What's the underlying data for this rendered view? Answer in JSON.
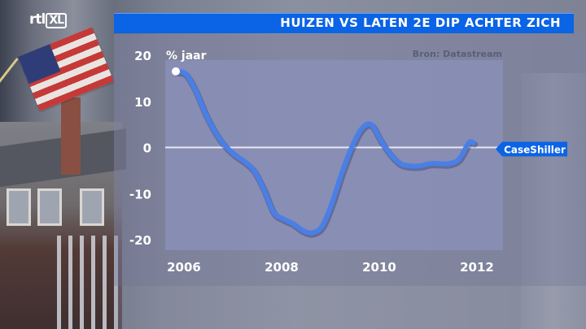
{
  "logo": {
    "rtl": "rtl",
    "xl": "XL"
  },
  "title": "HUIZEN VS LATEN 2E DIP ACHTER ZICH",
  "chart_data": {
    "type": "line",
    "title": "HUIZEN VS LATEN 2E DIP ACHTER ZICH",
    "ylabel": "% jaar",
    "source": "Bron: Datastream",
    "series_label": "CaseShiller",
    "ylim": [
      -20,
      20
    ],
    "xlim": [
      2006.0,
      2012.4
    ],
    "yticks": [
      20,
      10,
      0,
      -10,
      -20
    ],
    "ytick_labels": [
      "20",
      "10",
      "0",
      "-10",
      "-20"
    ],
    "xticks": [
      2006,
      2008,
      2010,
      2012
    ],
    "xtick_labels": [
      "2006",
      "2008",
      "2010",
      "2012"
    ],
    "reference_line": 0,
    "series": [
      {
        "name": "CaseShiller",
        "x": [
          2006.0,
          2006.2,
          2006.4,
          2006.6,
          2006.8,
          2007.0,
          2007.2,
          2007.4,
          2007.6,
          2007.8,
          2008.0,
          2008.2,
          2008.4,
          2008.6,
          2008.8,
          2009.0,
          2009.2,
          2009.4,
          2009.6,
          2009.8,
          2010.0,
          2010.2,
          2010.4,
          2010.6,
          2010.8,
          2011.0,
          2011.2,
          2011.4,
          2011.6,
          2011.8,
          2012.0,
          2012.1
        ],
        "values": [
          16.5,
          16.0,
          12.5,
          7.5,
          3.5,
          0.5,
          -1.5,
          -3.0,
          -5.0,
          -9.0,
          -14.0,
          -15.5,
          -16.5,
          -18.0,
          -18.5,
          -17.0,
          -12.0,
          -5.5,
          0.0,
          4.0,
          5.0,
          1.5,
          -1.5,
          -3.5,
          -4.0,
          -4.0,
          -3.5,
          -3.5,
          -3.5,
          -2.5,
          1.0,
          1.0
        ]
      }
    ],
    "colors": {
      "line": "#4a7fe6",
      "zero_line": "#e6e8f0",
      "plot_bg": "#8a8fb7"
    }
  }
}
